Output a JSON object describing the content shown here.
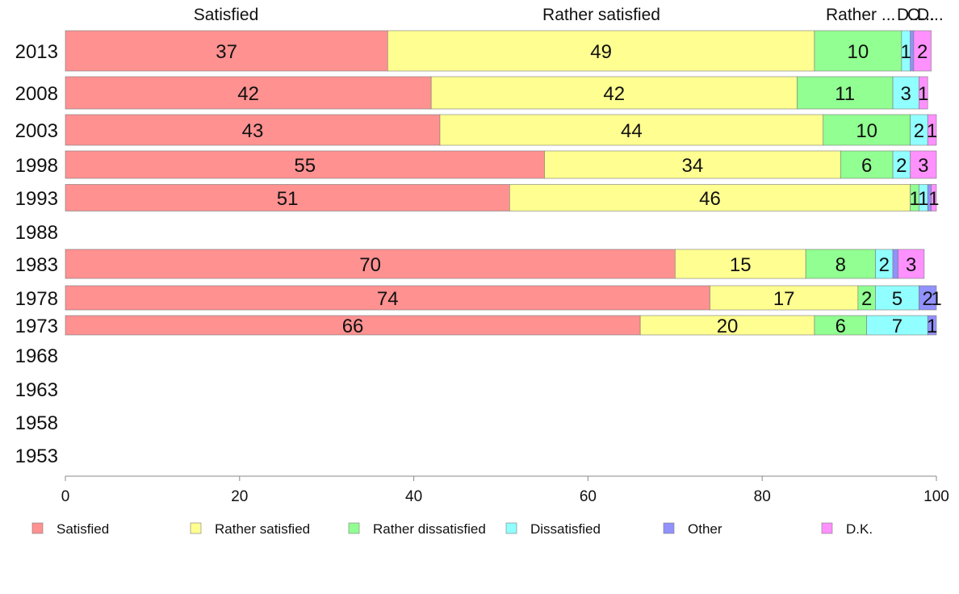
{
  "chart_data": {
    "type": "bar",
    "orientation": "horizontal",
    "stacked": true,
    "title": "",
    "xlabel": "",
    "ylabel": "",
    "xlim": [
      0,
      100
    ],
    "x_ticks": [
      0,
      20,
      40,
      60,
      80,
      100
    ],
    "grid": false,
    "legend_position": "bottom",
    "top_labels": [
      "Satisfied",
      "Rather satisfied",
      "Rather ...",
      "D...",
      "O...",
      "D..."
    ],
    "categories": [
      "2013",
      "2008",
      "2003",
      "1998",
      "1993",
      "1988",
      "1983",
      "1978",
      "1973",
      "1968",
      "1963",
      "1958",
      "1953"
    ],
    "series": [
      {
        "name": "Satisfied",
        "color": "#ff9191",
        "values": [
          37,
          42,
          43,
          55,
          51,
          null,
          70,
          74,
          66,
          null,
          null,
          null,
          null
        ]
      },
      {
        "name": "Rather satisfied",
        "color": "#ffff91",
        "values": [
          49,
          42,
          44,
          34,
          46,
          null,
          15,
          17,
          20,
          null,
          null,
          null,
          null
        ]
      },
      {
        "name": "Rather dissatisfied",
        "color": "#91ff91",
        "values": [
          10,
          11,
          10,
          6,
          1,
          null,
          8,
          2,
          6,
          null,
          null,
          null,
          null
        ]
      },
      {
        "name": "Dissatisfied",
        "color": "#91ffff",
        "values": [
          1,
          3,
          2,
          2,
          1,
          null,
          2,
          5,
          7,
          null,
          null,
          null,
          null
        ]
      },
      {
        "name": "Other",
        "color": "#9191ff",
        "values": [
          0.4,
          0,
          0,
          0,
          0.4,
          null,
          0.6,
          2,
          1,
          null,
          null,
          null,
          null
        ]
      },
      {
        "name": "D.K.",
        "color": "#ff91ff",
        "values": [
          2,
          1,
          1,
          3,
          1,
          null,
          3,
          1,
          0,
          null,
          null,
          null,
          null
        ]
      }
    ]
  }
}
